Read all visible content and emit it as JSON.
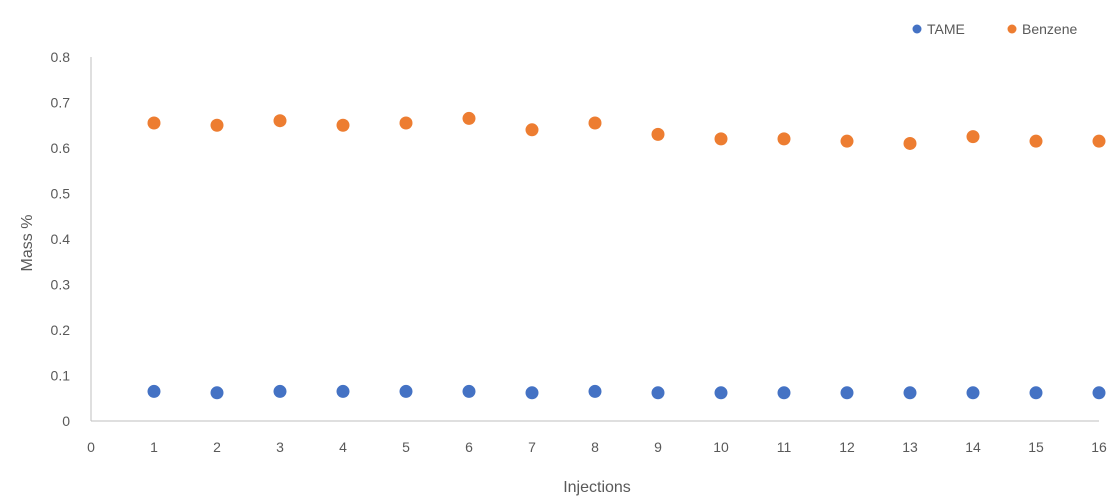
{
  "chart_data": {
    "type": "scatter",
    "title": "",
    "xlabel": "Injections",
    "ylabel": "Mass %",
    "xlim": [
      0,
      16
    ],
    "ylim": [
      0,
      0.8
    ],
    "x_ticks": [
      0,
      1,
      2,
      3,
      4,
      5,
      6,
      7,
      8,
      9,
      10,
      11,
      12,
      13,
      14,
      15,
      16
    ],
    "y_ticks": [
      "0",
      "0.1",
      "0.2",
      "0.3",
      "0.4",
      "0.5",
      "0.6",
      "0.7",
      "0.8"
    ],
    "grid": false,
    "legend_position": "top-right",
    "series": [
      {
        "name": "TAME",
        "color": "#4472C4",
        "x": [
          1,
          2,
          3,
          4,
          5,
          6,
          7,
          8,
          9,
          10,
          11,
          12,
          13,
          14,
          15,
          16
        ],
        "y": [
          0.065,
          0.062,
          0.065,
          0.065,
          0.065,
          0.065,
          0.062,
          0.065,
          0.062,
          0.062,
          0.062,
          0.062,
          0.062,
          0.062,
          0.062,
          0.062
        ]
      },
      {
        "name": "Benzene",
        "color": "#ED7D31",
        "x": [
          1,
          2,
          3,
          4,
          5,
          6,
          7,
          8,
          9,
          10,
          11,
          12,
          13,
          14,
          15,
          16
        ],
        "y": [
          0.655,
          0.65,
          0.66,
          0.65,
          0.655,
          0.665,
          0.64,
          0.655,
          0.63,
          0.62,
          0.62,
          0.615,
          0.61,
          0.625,
          0.615,
          0.615
        ]
      }
    ]
  }
}
